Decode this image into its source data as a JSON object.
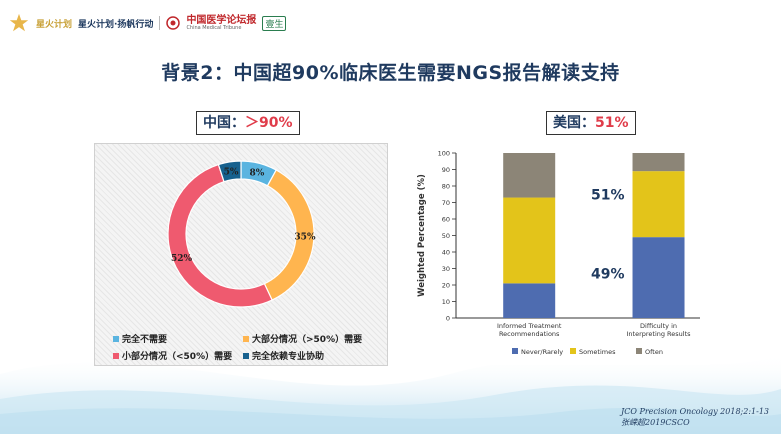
{
  "header": {
    "brand_cn": "星火计划",
    "brand_sub": "星火计划·扬帆行动",
    "cmt_cn": "中国医学论坛报",
    "cmt_en": "China Medical Tribune",
    "partner": "壹生"
  },
  "title": "背景2：中国超90%临床医生需要NGS报告解读支持",
  "china_tag": {
    "label": "中国：",
    "value": "＞90%"
  },
  "us_tag": {
    "label": "美国：",
    "value": "51%"
  },
  "colors": {
    "blue_light": "#5ab4e0",
    "orange": "#ffb54f",
    "pink": "#ef5a6f",
    "dark_blue": "#17618e",
    "never": "#4e6cb0",
    "sometimes": "#e3c41a",
    "often": "#8c8577",
    "title": "#1f3a5f",
    "highlight": "#e03c4a"
  },
  "chart_data": [
    {
      "type": "pie",
      "style": "donut",
      "slices": [
        {
          "label": "完全不需要",
          "value": 8,
          "display": "8%",
          "color": "#5ab4e0"
        },
        {
          "label": "大部分情况（>50%）需要",
          "value": 35,
          "display": "35%",
          "color": "#ffb54f"
        },
        {
          "label": "小部分情况（<50%）需要",
          "value": 52,
          "display": "52%",
          "color": "#ef5a6f"
        },
        {
          "label": "完全依赖专业协助",
          "value": 5,
          "display": "5%",
          "color": "#17618e"
        }
      ],
      "legend_position": "bottom"
    },
    {
      "type": "bar",
      "stacked": true,
      "ylabel": "Weighted Percentage (%)",
      "ylim": [
        0,
        100
      ],
      "yticks": [
        0,
        10,
        20,
        30,
        40,
        50,
        60,
        70,
        80,
        90,
        100
      ],
      "categories": [
        [
          "Informed Treatment",
          "Recommendations"
        ],
        [
          "Difficulty in",
          "Interpreting Results"
        ]
      ],
      "series": [
        {
          "name": "Never/Rarely",
          "values": [
            21,
            49
          ],
          "color": "#4e6cb0"
        },
        {
          "name": "Sometimes",
          "values": [
            52,
            40
          ],
          "color": "#e3c41a"
        },
        {
          "name": "Often",
          "values": [
            27,
            11
          ],
          "color": "#8c8577"
        }
      ],
      "annotations": [
        {
          "text": "51%",
          "category": 1,
          "level": 75
        },
        {
          "text": "49%",
          "category": 1,
          "level": 27
        }
      ],
      "legend_position": "bottom"
    }
  ],
  "citation": {
    "line1": "JCO Precision Oncology 2018;2:1-13",
    "line2": "张嵘超2019CSCO"
  }
}
